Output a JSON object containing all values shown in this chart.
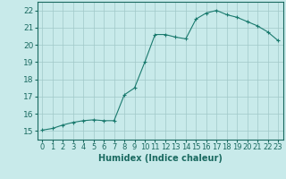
{
  "x": [
    0,
    1,
    2,
    3,
    4,
    5,
    6,
    7,
    8,
    9,
    10,
    11,
    12,
    13,
    14,
    15,
    16,
    17,
    18,
    19,
    20,
    21,
    22,
    23
  ],
  "y": [
    15.05,
    15.15,
    15.35,
    15.5,
    15.6,
    15.65,
    15.6,
    15.6,
    17.1,
    17.5,
    19.0,
    20.6,
    20.6,
    20.45,
    20.35,
    21.5,
    21.85,
    22.0,
    21.75,
    21.6,
    21.35,
    21.1,
    20.75,
    20.25
  ],
  "line_color": "#1a7a6e",
  "marker": "+",
  "marker_color": "#1a7a6e",
  "bg_color": "#c8eaea",
  "grid_color": "#a0c8c8",
  "xlabel": "Humidex (Indice chaleur)",
  "ylim": [
    14.5,
    22.5
  ],
  "xlim": [
    -0.5,
    23.5
  ],
  "yticks": [
    15,
    16,
    17,
    18,
    19,
    20,
    21,
    22
  ],
  "xticks": [
    0,
    1,
    2,
    3,
    4,
    5,
    6,
    7,
    8,
    9,
    10,
    11,
    12,
    13,
    14,
    15,
    16,
    17,
    18,
    19,
    20,
    21,
    22,
    23
  ],
  "tick_color": "#1a6a60",
  "xlabel_fontsize": 7,
  "ytick_fontsize": 6.5,
  "xtick_fontsize": 6
}
